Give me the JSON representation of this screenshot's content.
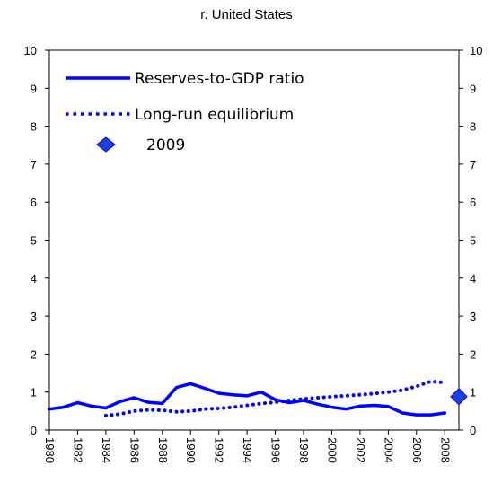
{
  "chart_data": {
    "type": "line",
    "title": "r. United States",
    "xlabel": "",
    "ylabel": "",
    "ylim": [
      0,
      10
    ],
    "yticks": [
      "0",
      "1",
      "2",
      "3",
      "4",
      "5",
      "6",
      "7",
      "8",
      "9",
      "10"
    ],
    "xlim": [
      1980,
      2009
    ],
    "xticks": [
      "1980",
      "1982",
      "1984",
      "1986",
      "1988",
      "1990",
      "1992",
      "1994",
      "1996",
      "1998",
      "2000",
      "2002",
      "2004",
      "2006",
      "2008"
    ],
    "grid": false,
    "legend_position": "top-left",
    "colors": {
      "line": "#0000ff",
      "marker": "#1f3fd6"
    },
    "series": [
      {
        "name": "Reserves-to-GDP ratio",
        "style": "solid",
        "x": [
          1980,
          1981,
          1982,
          1983,
          1984,
          1985,
          1986,
          1987,
          1988,
          1989,
          1990,
          1991,
          1992,
          1993,
          1994,
          1995,
          1996,
          1997,
          1998,
          1999,
          2000,
          2001,
          2002,
          2003,
          2004,
          2005,
          2006,
          2007,
          2008
        ],
        "y": [
          0.55,
          0.6,
          0.72,
          0.63,
          0.58,
          0.75,
          0.85,
          0.73,
          0.7,
          1.12,
          1.22,
          1.1,
          0.97,
          0.93,
          0.9,
          1.0,
          0.8,
          0.72,
          0.78,
          0.68,
          0.6,
          0.55,
          0.63,
          0.65,
          0.62,
          0.45,
          0.4,
          0.4,
          0.45
        ]
      },
      {
        "name": "Long-run equilibrium",
        "style": "dotted",
        "x": [
          1984,
          1985,
          1986,
          1987,
          1988,
          1989,
          1990,
          1991,
          1992,
          1993,
          1994,
          1995,
          1996,
          1997,
          1998,
          1999,
          2000,
          2001,
          2002,
          2003,
          2004,
          2005,
          2006,
          2007,
          2008
        ],
        "y": [
          0.38,
          0.42,
          0.5,
          0.53,
          0.52,
          0.48,
          0.5,
          0.55,
          0.57,
          0.6,
          0.65,
          0.7,
          0.73,
          0.78,
          0.82,
          0.85,
          0.88,
          0.9,
          0.93,
          0.96,
          1.0,
          1.05,
          1.15,
          1.28,
          1.25
        ]
      },
      {
        "name": "2009",
        "style": "marker",
        "x": [
          2009
        ],
        "y": [
          0.88
        ]
      }
    ]
  }
}
